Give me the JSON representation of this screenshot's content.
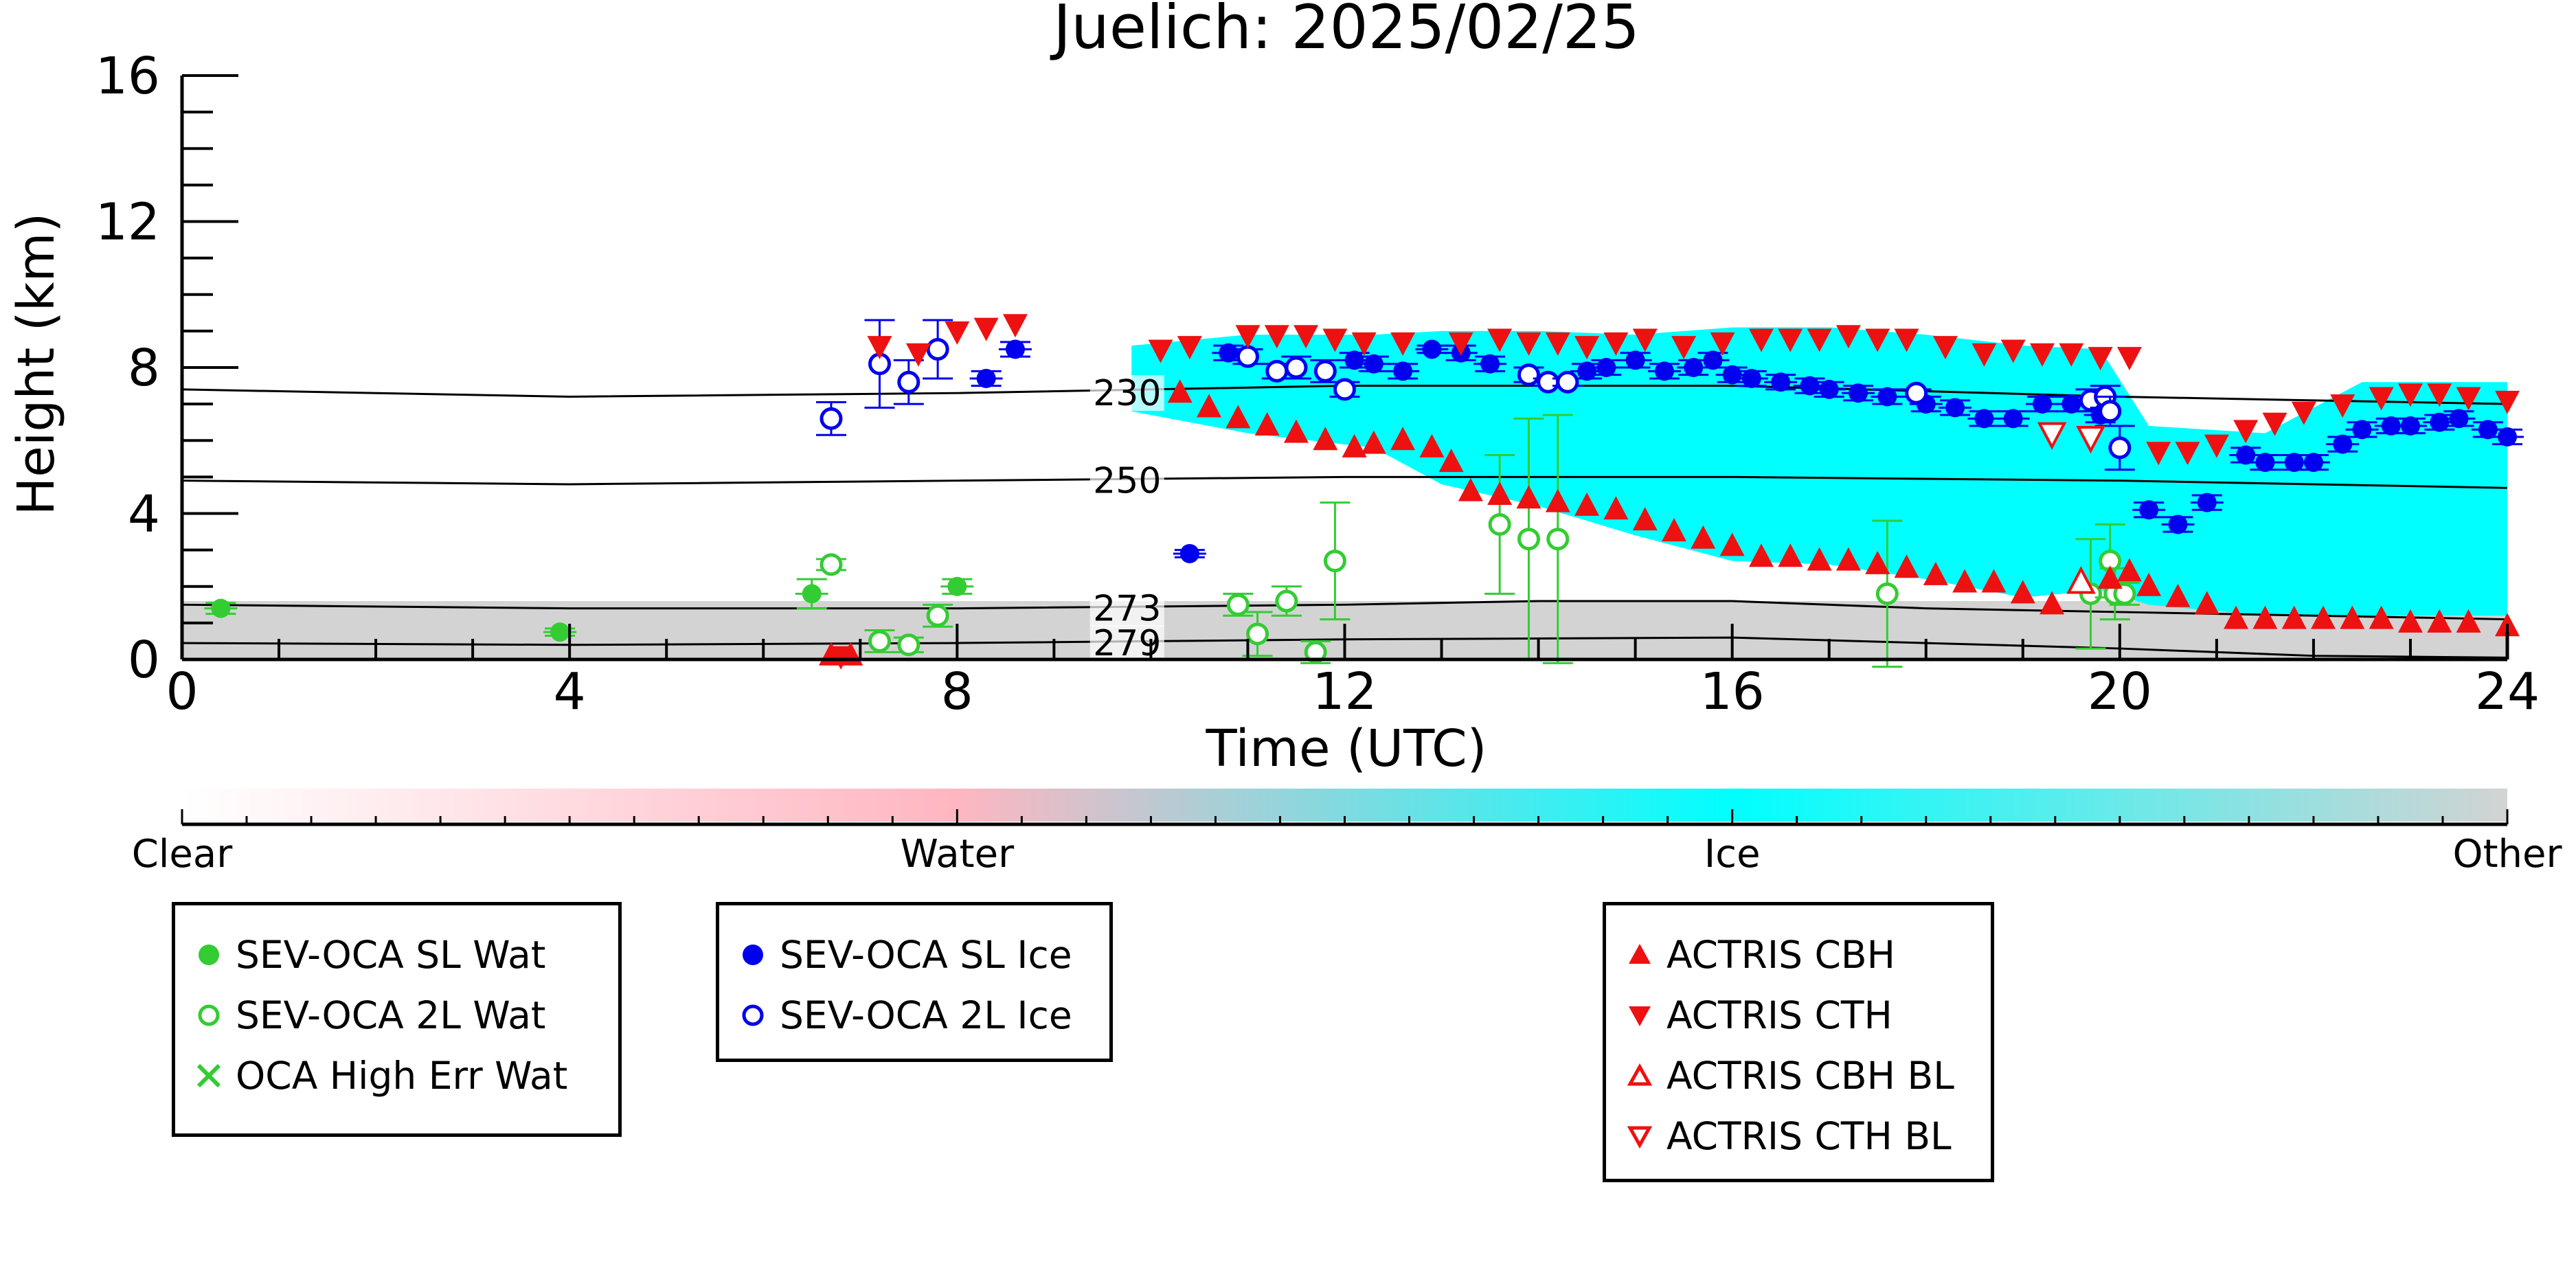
{
  "chart_data": {
    "type": "scatter",
    "title": "Juelich: 2025/02/25",
    "xlabel": "Time (UTC)",
    "ylabel": "Height (km)",
    "xlim": [
      0,
      24
    ],
    "ylim": [
      0,
      16
    ],
    "x_ticks": [
      0,
      4,
      8,
      12,
      16,
      20,
      24
    ],
    "y_ticks": [
      0,
      4,
      8,
      12,
      16
    ],
    "colorbar": {
      "labels": [
        "Clear",
        "Water",
        "Ice",
        "Other"
      ],
      "colors": [
        "#ffffff",
        "#ffb6c1",
        "#00ffff",
        "#d3d3d3"
      ]
    },
    "background_field": {
      "other_region": {
        "start": 0,
        "end": 24,
        "top_km": 1.6
      },
      "ice_region": [
        [
          9.8,
          8.6,
          6.8
        ],
        [
          11,
          8.9,
          6.2
        ],
        [
          12.3,
          8.9,
          5.8
        ],
        [
          13,
          9.0,
          4.8
        ],
        [
          14,
          9.0,
          4.2
        ],
        [
          15,
          8.9,
          3.4
        ],
        [
          16,
          9.1,
          2.7
        ],
        [
          17,
          9.1,
          2.6
        ],
        [
          18,
          8.9,
          2.2
        ],
        [
          19,
          8.6,
          1.7
        ],
        [
          19.8,
          8.5,
          1.9
        ],
        [
          20.3,
          6.4,
          1.5
        ],
        [
          21.5,
          6.2,
          1.2
        ],
        [
          22.5,
          7.6,
          1.2
        ],
        [
          24,
          7.6,
          1.2
        ]
      ],
      "isotherms": [
        {
          "label": "230",
          "points": [
            [
              0,
              7.4
            ],
            [
              4,
              7.2
            ],
            [
              8,
              7.3
            ],
            [
              12,
              7.5
            ],
            [
              16,
              7.5
            ],
            [
              20,
              7.2
            ],
            [
              24,
              7.0
            ]
          ]
        },
        {
          "label": "250",
          "points": [
            [
              0,
              4.9
            ],
            [
              4,
              4.8
            ],
            [
              8,
              4.9
            ],
            [
              12,
              5.0
            ],
            [
              16,
              5.0
            ],
            [
              20,
              4.9
            ],
            [
              24,
              4.7
            ]
          ]
        },
        {
          "label": "273",
          "points": [
            [
              0,
              1.5
            ],
            [
              4,
              1.4
            ],
            [
              8,
              1.4
            ],
            [
              12,
              1.5
            ],
            [
              14,
              1.6
            ],
            [
              16,
              1.6
            ],
            [
              18,
              1.4
            ],
            [
              20,
              1.3
            ],
            [
              24,
              1.1
            ]
          ]
        },
        {
          "label": "279",
          "points": [
            [
              0,
              0.45
            ],
            [
              4,
              0.4
            ],
            [
              8,
              0.45
            ],
            [
              12,
              0.55
            ],
            [
              16,
              0.6
            ],
            [
              20,
              0.3
            ],
            [
              22,
              0.1
            ],
            [
              24,
              0.05
            ]
          ]
        }
      ]
    },
    "series": [
      {
        "name": "SEV-OCA SL Wat",
        "marker": "filled-circle",
        "color": "#33cc33",
        "points": [
          [
            0.4,
            1.4,
            0.15
          ],
          [
            3.9,
            0.75,
            0.1
          ],
          [
            6.5,
            1.8,
            0.4
          ],
          [
            8.0,
            2.0,
            0.2
          ]
        ]
      },
      {
        "name": "SEV-OCA 2L Wat",
        "marker": "open-circle",
        "color": "#33cc33",
        "points": [
          [
            6.7,
            2.6,
            0.15
          ],
          [
            7.2,
            0.5,
            0.3
          ],
          [
            7.5,
            0.4,
            0.2
          ],
          [
            7.8,
            1.2,
            0.3
          ],
          [
            10.9,
            1.5,
            0.3
          ],
          [
            11.1,
            0.7,
            0.6
          ],
          [
            11.4,
            1.6,
            0.4
          ],
          [
            11.7,
            0.2,
            0.3
          ],
          [
            11.9,
            2.7,
            1.6
          ],
          [
            13.6,
            3.7,
            1.9
          ],
          [
            13.9,
            3.3,
            3.3
          ],
          [
            14.2,
            3.3,
            3.4
          ],
          [
            17.6,
            1.8,
            2.0
          ],
          [
            19.7,
            1.8,
            1.5
          ],
          [
            19.9,
            2.7,
            1.0
          ],
          [
            19.95,
            1.8,
            0.7
          ],
          [
            20.05,
            1.8,
            0.3
          ]
        ]
      },
      {
        "name": "OCA High Err Wat",
        "marker": "x",
        "color": "#33cc33",
        "points": []
      },
      {
        "name": "SEV-OCA SL Ice",
        "marker": "filled-circle",
        "color": "#0000ee",
        "points": [
          [
            8.3,
            7.7,
            0.2
          ],
          [
            8.6,
            8.5,
            0.2
          ],
          [
            10.4,
            2.9,
            0.1
          ],
          [
            10.8,
            8.4,
            0.2
          ],
          [
            12.1,
            8.2,
            0.2
          ],
          [
            12.3,
            8.1,
            0.2
          ],
          [
            12.6,
            7.9,
            0.2
          ],
          [
            12.9,
            8.5,
            0.1
          ],
          [
            13.2,
            8.4,
            0.2
          ],
          [
            13.5,
            8.1,
            0.2
          ],
          [
            14.5,
            7.9,
            0.2
          ],
          [
            14.7,
            8.0,
            0.2
          ],
          [
            15.0,
            8.2,
            0.2
          ],
          [
            15.3,
            7.9,
            0.2
          ],
          [
            15.6,
            8.0,
            0.2
          ],
          [
            15.8,
            8.2,
            0.2
          ],
          [
            16.0,
            7.8,
            0.2
          ],
          [
            16.2,
            7.7,
            0.2
          ],
          [
            16.5,
            7.6,
            0.2
          ],
          [
            16.8,
            7.5,
            0.2
          ],
          [
            17.0,
            7.4,
            0.2
          ],
          [
            17.3,
            7.3,
            0.2
          ],
          [
            17.6,
            7.2,
            0.2
          ],
          [
            18.0,
            7.0,
            0.2
          ],
          [
            18.3,
            6.9,
            0.2
          ],
          [
            18.6,
            6.6,
            0.2
          ],
          [
            18.9,
            6.6,
            0.2
          ],
          [
            19.2,
            7.0,
            0.2
          ],
          [
            19.5,
            7.0,
            0.2
          ],
          [
            19.8,
            6.7,
            0.2
          ],
          [
            20.3,
            4.1,
            0.2
          ],
          [
            20.6,
            3.7,
            0.2
          ],
          [
            20.9,
            4.3,
            0.2
          ],
          [
            21.3,
            5.6,
            0.2
          ],
          [
            21.5,
            5.4,
            0.2
          ],
          [
            21.8,
            5.4,
            0.2
          ],
          [
            22.0,
            5.4,
            0.2
          ],
          [
            22.3,
            5.9,
            0.2
          ],
          [
            22.5,
            6.3,
            0.2
          ],
          [
            22.8,
            6.4,
            0.2
          ],
          [
            23.0,
            6.4,
            0.2
          ],
          [
            23.3,
            6.5,
            0.2
          ],
          [
            23.5,
            6.6,
            0.2
          ],
          [
            23.8,
            6.3,
            0.2
          ],
          [
            24.0,
            6.1,
            0.2
          ]
        ]
      },
      {
        "name": "SEV-OCA 2L Ice",
        "marker": "open-circle",
        "color": "#0000ee",
        "points": [
          [
            6.7,
            6.6,
            0.45
          ],
          [
            7.2,
            8.1,
            1.2
          ],
          [
            7.5,
            7.6,
            0.6
          ],
          [
            7.8,
            8.5,
            0.8
          ],
          [
            11.0,
            8.3,
            0.2
          ],
          [
            11.3,
            7.9,
            0.2
          ],
          [
            11.5,
            8.0,
            0.3
          ],
          [
            11.8,
            7.9,
            0.3
          ],
          [
            12.0,
            7.4,
            0.2
          ],
          [
            13.9,
            7.8,
            0.2
          ],
          [
            14.1,
            7.6,
            0.1
          ],
          [
            14.3,
            7.6,
            0.1
          ],
          [
            17.9,
            7.3,
            0.1
          ],
          [
            19.7,
            7.1,
            0.3
          ],
          [
            19.85,
            7.2,
            0.3
          ],
          [
            19.9,
            6.8,
            0.4
          ],
          [
            20.0,
            5.8,
            0.6
          ]
        ]
      },
      {
        "name": "ACTRIS CBH",
        "marker": "triangle-up",
        "color": "#ee1111",
        "points": [
          [
            6.7,
            0.1
          ],
          [
            6.9,
            0.1
          ],
          [
            10.3,
            7.3
          ],
          [
            10.6,
            6.9
          ],
          [
            10.9,
            6.6
          ],
          [
            11.2,
            6.4
          ],
          [
            11.5,
            6.2
          ],
          [
            11.8,
            6.0
          ],
          [
            12.1,
            5.8
          ],
          [
            12.3,
            5.9
          ],
          [
            12.6,
            6.0
          ],
          [
            12.9,
            5.8
          ],
          [
            13.1,
            5.4
          ],
          [
            13.3,
            4.6
          ],
          [
            13.6,
            4.5
          ],
          [
            13.9,
            4.4
          ],
          [
            14.2,
            4.3
          ],
          [
            14.5,
            4.2
          ],
          [
            14.8,
            4.1
          ],
          [
            15.1,
            3.8
          ],
          [
            15.4,
            3.5
          ],
          [
            15.7,
            3.3
          ],
          [
            16.0,
            3.1
          ],
          [
            16.3,
            2.8
          ],
          [
            16.6,
            2.8
          ],
          [
            16.9,
            2.7
          ],
          [
            17.2,
            2.7
          ],
          [
            17.5,
            2.6
          ],
          [
            17.8,
            2.5
          ],
          [
            18.1,
            2.3
          ],
          [
            18.4,
            2.1
          ],
          [
            18.7,
            2.1
          ],
          [
            19.0,
            1.8
          ],
          [
            19.3,
            1.5
          ],
          [
            19.6,
            2.1
          ],
          [
            19.9,
            2.2
          ],
          [
            20.1,
            2.4
          ],
          [
            20.3,
            2.0
          ],
          [
            20.6,
            1.7
          ],
          [
            20.9,
            1.5
          ],
          [
            21.2,
            1.1
          ],
          [
            21.5,
            1.1
          ],
          [
            21.8,
            1.1
          ],
          [
            22.1,
            1.1
          ],
          [
            22.4,
            1.1
          ],
          [
            22.7,
            1.1
          ],
          [
            23.0,
            1.0
          ],
          [
            23.3,
            1.0
          ],
          [
            23.6,
            1.0
          ],
          [
            24.0,
            0.9
          ]
        ]
      },
      {
        "name": "ACTRIS CTH",
        "marker": "triangle-down",
        "color": "#ee1111",
        "points": [
          [
            6.8,
            0.1
          ],
          [
            7.2,
            8.6
          ],
          [
            7.6,
            8.4
          ],
          [
            8.0,
            9.0
          ],
          [
            8.3,
            9.1
          ],
          [
            8.6,
            9.2
          ],
          [
            10.1,
            8.5
          ],
          [
            10.4,
            8.6
          ],
          [
            11.0,
            8.9
          ],
          [
            11.3,
            8.9
          ],
          [
            11.6,
            8.9
          ],
          [
            11.9,
            8.8
          ],
          [
            12.2,
            8.7
          ],
          [
            12.6,
            8.7
          ],
          [
            13.2,
            8.7
          ],
          [
            13.6,
            8.8
          ],
          [
            13.9,
            8.7
          ],
          [
            14.2,
            8.7
          ],
          [
            14.5,
            8.6
          ],
          [
            14.8,
            8.7
          ],
          [
            15.1,
            8.8
          ],
          [
            15.5,
            8.6
          ],
          [
            15.9,
            8.7
          ],
          [
            16.3,
            8.8
          ],
          [
            16.6,
            8.8
          ],
          [
            16.9,
            8.8
          ],
          [
            17.2,
            8.9
          ],
          [
            17.5,
            8.8
          ],
          [
            17.8,
            8.8
          ],
          [
            18.2,
            8.6
          ],
          [
            18.6,
            8.4
          ],
          [
            18.9,
            8.5
          ],
          [
            19.2,
            8.4
          ],
          [
            19.5,
            8.4
          ],
          [
            19.8,
            8.3
          ],
          [
            20.1,
            8.3
          ],
          [
            20.4,
            5.7
          ],
          [
            20.7,
            5.7
          ],
          [
            21.0,
            5.9
          ],
          [
            21.3,
            6.3
          ],
          [
            21.6,
            6.5
          ],
          [
            21.9,
            6.8
          ],
          [
            22.3,
            7.0
          ],
          [
            22.7,
            7.2
          ],
          [
            23.0,
            7.3
          ],
          [
            23.3,
            7.3
          ],
          [
            23.6,
            7.2
          ],
          [
            24.0,
            7.1
          ]
        ]
      },
      {
        "name": "ACTRIS CBH BL",
        "marker": "open-triangle-up",
        "color": "#ee1111",
        "points": [
          [
            19.6,
            2.1
          ]
        ]
      },
      {
        "name": "ACTRIS CTH BL",
        "marker": "open-triangle-down",
        "color": "#ee1111",
        "points": [
          [
            19.3,
            6.2
          ],
          [
            19.7,
            6.1
          ]
        ]
      }
    ]
  }
}
